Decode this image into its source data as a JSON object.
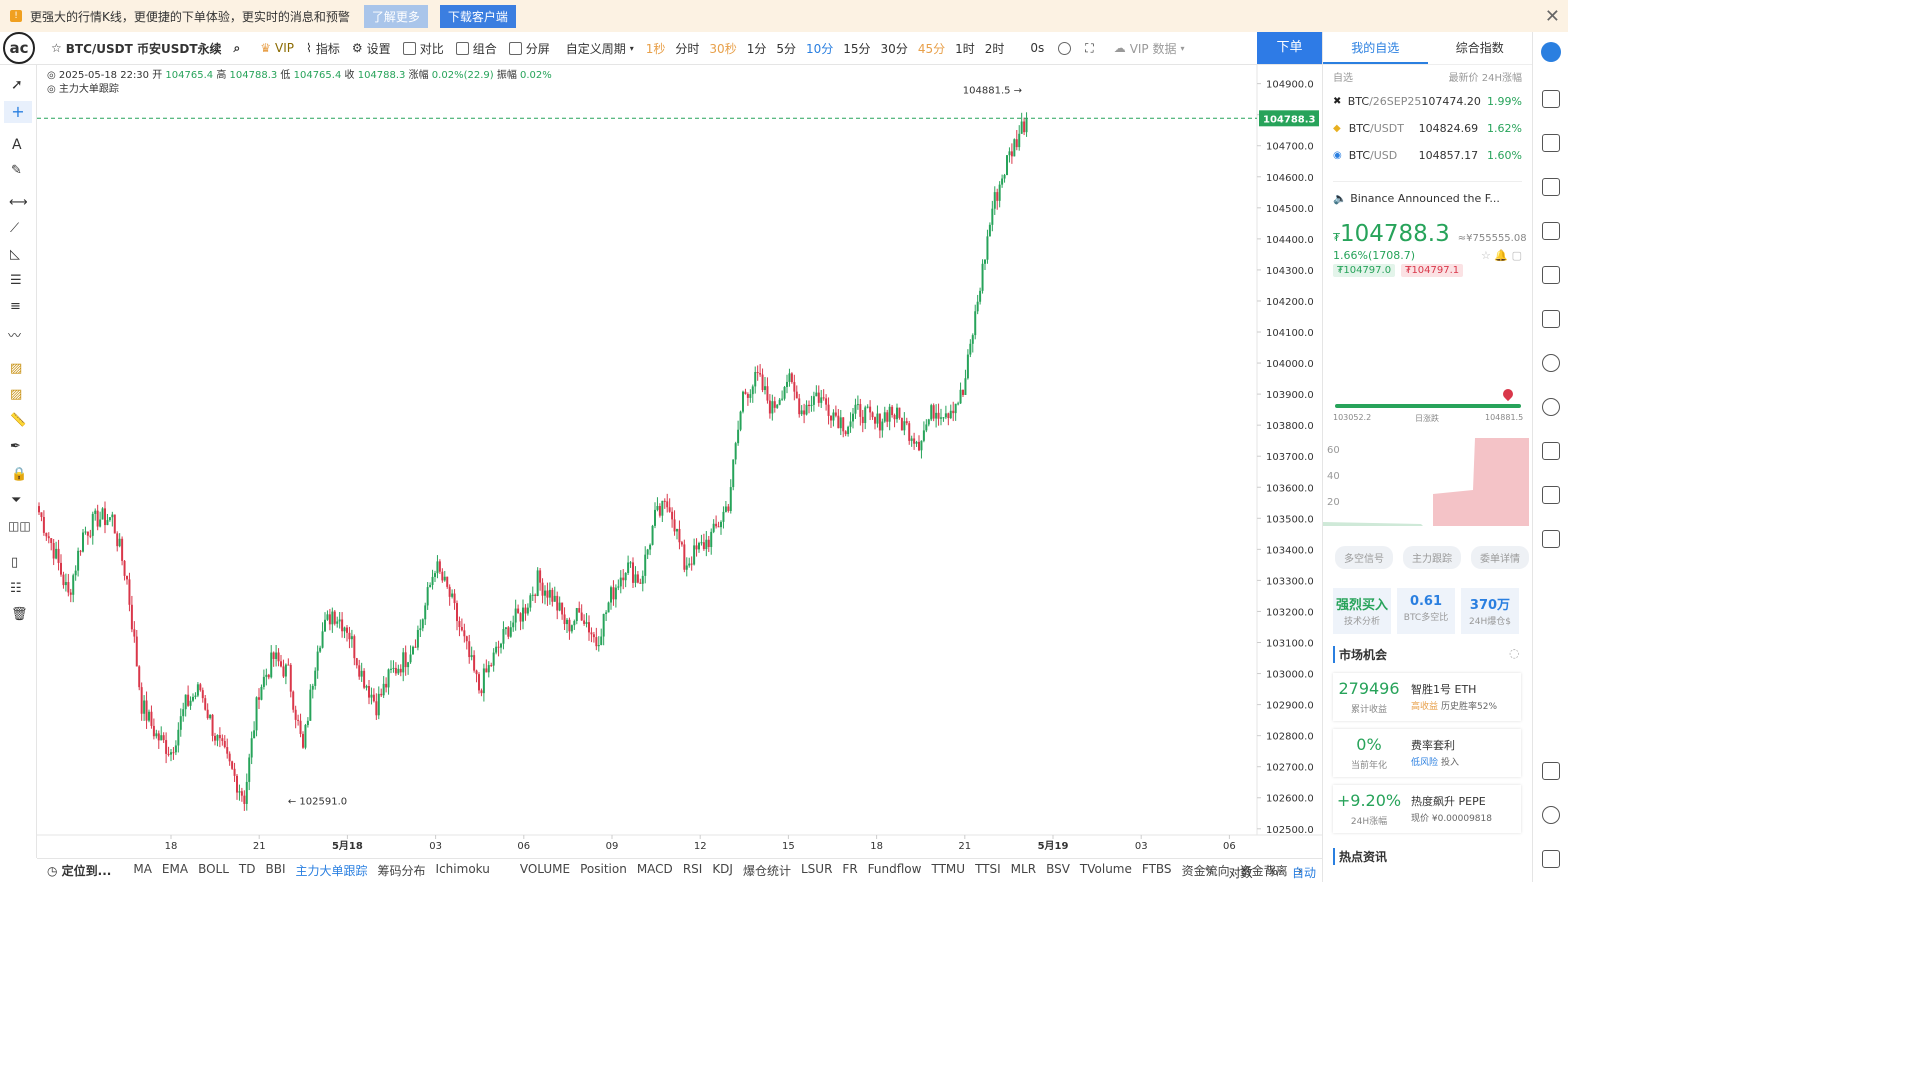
{
  "banner": {
    "text": "更强大的行情K线，更便捷的下单体验，更实时的消息和预警",
    "learn_more": "了解更多",
    "download": "下载客户端"
  },
  "toolbar": {
    "logo": "ac",
    "symbol": "BTC/USDT 币安USDT永续",
    "vip": "VIP",
    "indicator": "指标",
    "settings": "设置",
    "compare": "对比",
    "combo": "组合",
    "split": "分屏",
    "custom_period": "自定义周期",
    "periods": [
      {
        "label": "1秒",
        "style": "orange"
      },
      {
        "label": "分时",
        "style": "normal"
      },
      {
        "label": "30秒",
        "style": "orange"
      },
      {
        "label": "1分",
        "style": "normal"
      },
      {
        "label": "5分",
        "style": "normal"
      },
      {
        "label": "10分",
        "style": "blue"
      },
      {
        "label": "15分",
        "style": "normal"
      },
      {
        "label": "30分",
        "style": "normal"
      },
      {
        "label": "45分",
        "style": "orange"
      },
      {
        "label": "1时",
        "style": "normal"
      },
      {
        "label": "2时",
        "style": "normal"
      }
    ],
    "countdown": "0s",
    "vip_data": "VIP 数据",
    "order": "下单"
  },
  "ohlc": {
    "date": "2025-05-18 22:30",
    "open_label": "开",
    "open": "104765.4",
    "high_label": "高",
    "high": "104788.3",
    "low_label": "低",
    "low": "104765.4",
    "close_label": "收",
    "close": "104788.3",
    "chg_label": "涨幅",
    "chg": "0.02%(22.9)",
    "amp_label": "振幅",
    "amp": "0.02%",
    "indicator_name": "主力大单跟踪"
  },
  "chart_data": {
    "type": "candlestick",
    "symbol": "BTC/USDT",
    "interval": "10分",
    "y_range": [
      102480,
      104960
    ],
    "y_ticks": [
      104900,
      104800,
      104700,
      104600,
      104500,
      104400,
      104300,
      104200,
      104100,
      104000,
      103900,
      103800,
      103700,
      103600,
      103500,
      103400,
      103300,
      103200,
      103100,
      103000,
      102900,
      102800,
      102700,
      102600,
      102500
    ],
    "x_tick_labels": [
      "18",
      "21",
      "5月18",
      "03",
      "06",
      "09",
      "12",
      "15",
      "18",
      "21",
      "5月19",
      "03",
      "06"
    ],
    "last_price": 104788.3,
    "high_mark": {
      "label": "104881.5",
      "value": 104881.5
    },
    "low_mark": {
      "label": "102591.0",
      "value": 102591.0
    },
    "colors": {
      "up": "#27a35a",
      "down": "#d9374a"
    },
    "keypoints": [
      [
        0,
        103520
      ],
      [
        6,
        103400
      ],
      [
        12,
        103250
      ],
      [
        18,
        103450
      ],
      [
        24,
        103500
      ],
      [
        30,
        103500
      ],
      [
        36,
        103300
      ],
      [
        42,
        102900
      ],
      [
        48,
        102800
      ],
      [
        54,
        102750
      ],
      [
        60,
        102900
      ],
      [
        66,
        102950
      ],
      [
        72,
        102800
      ],
      [
        78,
        102700
      ],
      [
        84,
        102600
      ],
      [
        90,
        102950
      ],
      [
        96,
        103050
      ],
      [
        102,
        103000
      ],
      [
        108,
        102750
      ],
      [
        114,
        103100
      ],
      [
        120,
        103200
      ],
      [
        126,
        103150
      ],
      [
        132,
        103000
      ],
      [
        138,
        102900
      ],
      [
        144,
        103000
      ],
      [
        150,
        103050
      ],
      [
        156,
        103150
      ],
      [
        162,
        103350
      ],
      [
        168,
        103250
      ],
      [
        174,
        103100
      ],
      [
        180,
        102950
      ],
      [
        186,
        103050
      ],
      [
        192,
        103150
      ],
      [
        198,
        103200
      ],
      [
        204,
        103300
      ],
      [
        210,
        103250
      ],
      [
        216,
        103150
      ],
      [
        222,
        103200
      ],
      [
        228,
        103100
      ],
      [
        234,
        103250
      ],
      [
        240,
        103350
      ],
      [
        246,
        103300
      ],
      [
        252,
        103500
      ],
      [
        258,
        103550
      ],
      [
        264,
        103350
      ],
      [
        270,
        103400
      ],
      [
        276,
        103450
      ],
      [
        282,
        103550
      ],
      [
        288,
        103900
      ],
      [
        294,
        103950
      ],
      [
        300,
        103850
      ],
      [
        306,
        103950
      ],
      [
        312,
        103850
      ],
      [
        318,
        103900
      ],
      [
        324,
        103850
      ],
      [
        330,
        103800
      ],
      [
        336,
        103850
      ],
      [
        342,
        103800
      ],
      [
        348,
        103850
      ],
      [
        354,
        103800
      ],
      [
        360,
        103750
      ],
      [
        366,
        103850
      ],
      [
        372,
        103850
      ],
      [
        378,
        103900
      ],
      [
        384,
        104200
      ],
      [
        390,
        104500
      ],
      [
        396,
        104650
      ],
      [
        402,
        104760
      ],
      [
        404,
        104788
      ]
    ]
  },
  "bottom": {
    "locate": "定位到...",
    "indicators": [
      {
        "label": "MA",
        "on": false
      },
      {
        "label": "EMA",
        "on": false
      },
      {
        "label": "BOLL",
        "on": false
      },
      {
        "label": "TD",
        "on": false
      },
      {
        "label": "BBI",
        "on": false
      },
      {
        "label": "主力大单跟踪",
        "on": true
      },
      {
        "label": "筹码分布",
        "on": false
      },
      {
        "label": "Ichimoku",
        "on": false
      },
      {
        "label": "VOLUME",
        "on": false
      },
      {
        "label": "Position",
        "on": false
      },
      {
        "label": "MACD",
        "on": false
      },
      {
        "label": "RSI",
        "on": false
      },
      {
        "label": "KDJ",
        "on": false
      },
      {
        "label": "爆仓统计",
        "on": false
      },
      {
        "label": "LSUR",
        "on": false
      },
      {
        "label": "FR",
        "on": false
      },
      {
        "label": "Fundflow",
        "on": false
      },
      {
        "label": "TTMU",
        "on": false
      },
      {
        "label": "TTSI",
        "on": false
      },
      {
        "label": "MLR",
        "on": false
      },
      {
        "label": "BSV",
        "on": false
      },
      {
        "label": "TVolume",
        "on": false
      },
      {
        "label": "FTBS",
        "on": false
      },
      {
        "label": "资金流向",
        "on": false
      },
      {
        "label": "资金背离",
        "on": false
      }
    ],
    "log": "对数",
    "pct": "%",
    "auto": "自动"
  },
  "right": {
    "tab_watch": "我的自选",
    "tab_index": "综合指数",
    "wl_head_left": "自选",
    "wl_head_right": "最新价  24H涨幅",
    "watchlist": [
      {
        "base": "BTC",
        "quote": "/26SEP25",
        "price": "107474.20",
        "change": "1.99%"
      },
      {
        "base": "BTC",
        "quote": "/USDT",
        "price": "104824.69",
        "change": "1.62%"
      },
      {
        "base": "BTC",
        "quote": "/USD",
        "price": "104857.17",
        "change": "1.60%"
      }
    ],
    "news": "Binance Announced the F...",
    "price": "104788.3",
    "price_prefix": "₮",
    "cny": "≈¥755555.08",
    "change": "1.66%(1708.7)",
    "bid": "₮104797.0",
    "ask": "₮104797.1",
    "range_low": "103052.2",
    "range_mid": "日涨跌",
    "range_high": "104881.5",
    "mini_axis": [
      "60",
      "40",
      "20"
    ],
    "signals": [
      "多空信号",
      "主力跟踪",
      "委单详情"
    ],
    "stats": [
      {
        "value": "强烈买入",
        "label": "技术分析",
        "color": "green"
      },
      {
        "value": "0.61",
        "label": "BTC多空比",
        "color": "blue"
      },
      {
        "value": "370万",
        "label": "24H爆仓$",
        "color": "blue"
      }
    ],
    "market_title": "市场机会",
    "cards": [
      {
        "value": "279496",
        "value_label": "累计收益",
        "title": "智胜1号 ETH",
        "tag": "高收益",
        "tag_style": "orange",
        "sub": "历史胜率52%"
      },
      {
        "value": "0%",
        "value_label": "当前年化",
        "title": "费率套利",
        "tag": "低风险",
        "tag_style": "blue",
        "sub": "投入"
      },
      {
        "value": "+9.20%",
        "value_label": "24H涨幅",
        "title": "热度飙升 PEPE",
        "tag": "",
        "tag_style": "",
        "sub": "现价 ¥0.00009818"
      }
    ],
    "hot_title": "热点资讯"
  }
}
